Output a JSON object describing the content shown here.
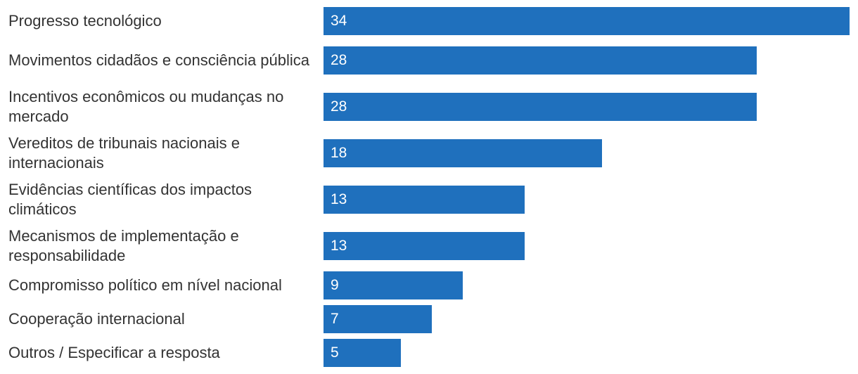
{
  "chart_data": {
    "type": "bar",
    "orientation": "horizontal",
    "categories": [
      "Progresso tecnológico",
      "Movimentos cidadãos e consciência pública",
      "Incentivos econômicos ou mudanças no mercado",
      "Vereditos de tribunais nacionais e internacionais",
      "Evidências científicas dos impactos climáticos",
      "Mecanismos de implementação e responsabilidade",
      "Compromisso político em nível nacional",
      "Cooperação internacional",
      "Outros / Especificar a resposta"
    ],
    "values": [
      34,
      28,
      28,
      18,
      13,
      13,
      9,
      7,
      5
    ],
    "data_labels": [
      "34",
      "28",
      "28",
      "18",
      "13",
      "13",
      "9",
      "7",
      "5"
    ],
    "xlim": [
      0,
      34
    ],
    "grid": false,
    "legend": "none",
    "bar_color": "#1f70bd"
  }
}
